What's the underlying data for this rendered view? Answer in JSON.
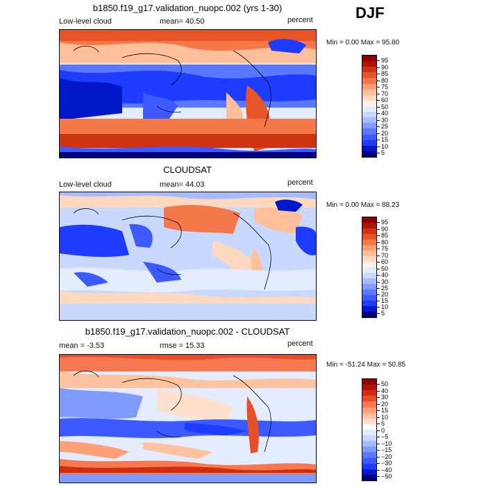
{
  "season": "DJF",
  "colors": {
    "abs_scale": [
      "#00007f",
      "#0018c8",
      "#1e3cff",
      "#3c5aff",
      "#5a78ff",
      "#7f9bff",
      "#a5bcff",
      "#c8d8ff",
      "#e4ecff",
      "#fff2e8",
      "#ffd8c0",
      "#ffbf9b",
      "#ff9e73",
      "#f5784b",
      "#e65528",
      "#d03214",
      "#b01406",
      "#8c0000"
    ],
    "diff_scale": [
      "#00007f",
      "#0018c8",
      "#1e3cff",
      "#3c5aff",
      "#5a78ff",
      "#7f9bff",
      "#a5bcff",
      "#c8d8ff",
      "#e4ecff",
      "#ffffff",
      "#ffe0cc",
      "#ffc3a0",
      "#ffa078",
      "#f57850",
      "#e65028",
      "#d02d0f",
      "#b01406",
      "#8c0000"
    ]
  },
  "panels": [
    {
      "title": "b1850.f19_g17.validation_nuopc.002 (yrs 1-30)",
      "left_label": "Low-level cloud",
      "mean_text": "mean=  40.50",
      "units": "percent",
      "minmax": "Min =    0.00 Max =   95.80",
      "colorbar_ticks": [
        "95",
        "90",
        "85",
        "80",
        "75",
        "70",
        "60",
        "50",
        "40",
        "30",
        "25",
        "20",
        "15",
        "10",
        "5"
      ]
    },
    {
      "title": "CLOUDSAT",
      "left_label": "Low-level cloud",
      "mean_text": "mean=  44.03",
      "units": "percent",
      "minmax": "Min =    0.00 Max =   88.23",
      "colorbar_ticks": [
        "95",
        "90",
        "85",
        "80",
        "75",
        "70",
        "60",
        "50",
        "40",
        "30",
        "25",
        "20",
        "15",
        "10",
        "5"
      ]
    },
    {
      "title": "b1850.f19_g17.validation_nuopc.002 - CLOUDSAT",
      "left_label": "mean =   -3.53",
      "mean_text": "rmse =   15.33",
      "units": "percent",
      "minmax": "Min = -51.24 Max =   50.85",
      "colorbar_ticks": [
        "50",
        "40",
        "30",
        "20",
        "15",
        "10",
        "5",
        "0",
        "−5",
        "−10",
        "−15",
        "−20",
        "−30",
        "−40",
        "−50"
      ]
    }
  ],
  "chart_data": [
    {
      "type": "heatmap",
      "title": "b1850.f19_g17.validation_nuopc.002 (yrs 1-30)",
      "variable": "Low-level cloud",
      "units": "percent",
      "mean": 40.5,
      "min": 0.0,
      "max": 95.8,
      "contour_levels": [
        5,
        10,
        15,
        20,
        25,
        30,
        40,
        50,
        60,
        70,
        75,
        80,
        85,
        90,
        95
      ]
    },
    {
      "type": "heatmap",
      "title": "CLOUDSAT",
      "variable": "Low-level cloud",
      "units": "percent",
      "mean": 44.03,
      "min": 0.0,
      "max": 88.23,
      "contour_levels": [
        5,
        10,
        15,
        20,
        25,
        30,
        40,
        50,
        60,
        70,
        75,
        80,
        85,
        90,
        95
      ]
    },
    {
      "type": "heatmap",
      "title": "b1850.f19_g17.validation_nuopc.002 - CLOUDSAT",
      "units": "percent",
      "mean": -3.53,
      "rmse": 15.33,
      "min": -51.24,
      "max": 50.85,
      "contour_levels": [
        -50,
        -40,
        -30,
        -20,
        -15,
        -10,
        -5,
        0,
        5,
        10,
        15,
        20,
        30,
        40,
        50
      ]
    }
  ]
}
